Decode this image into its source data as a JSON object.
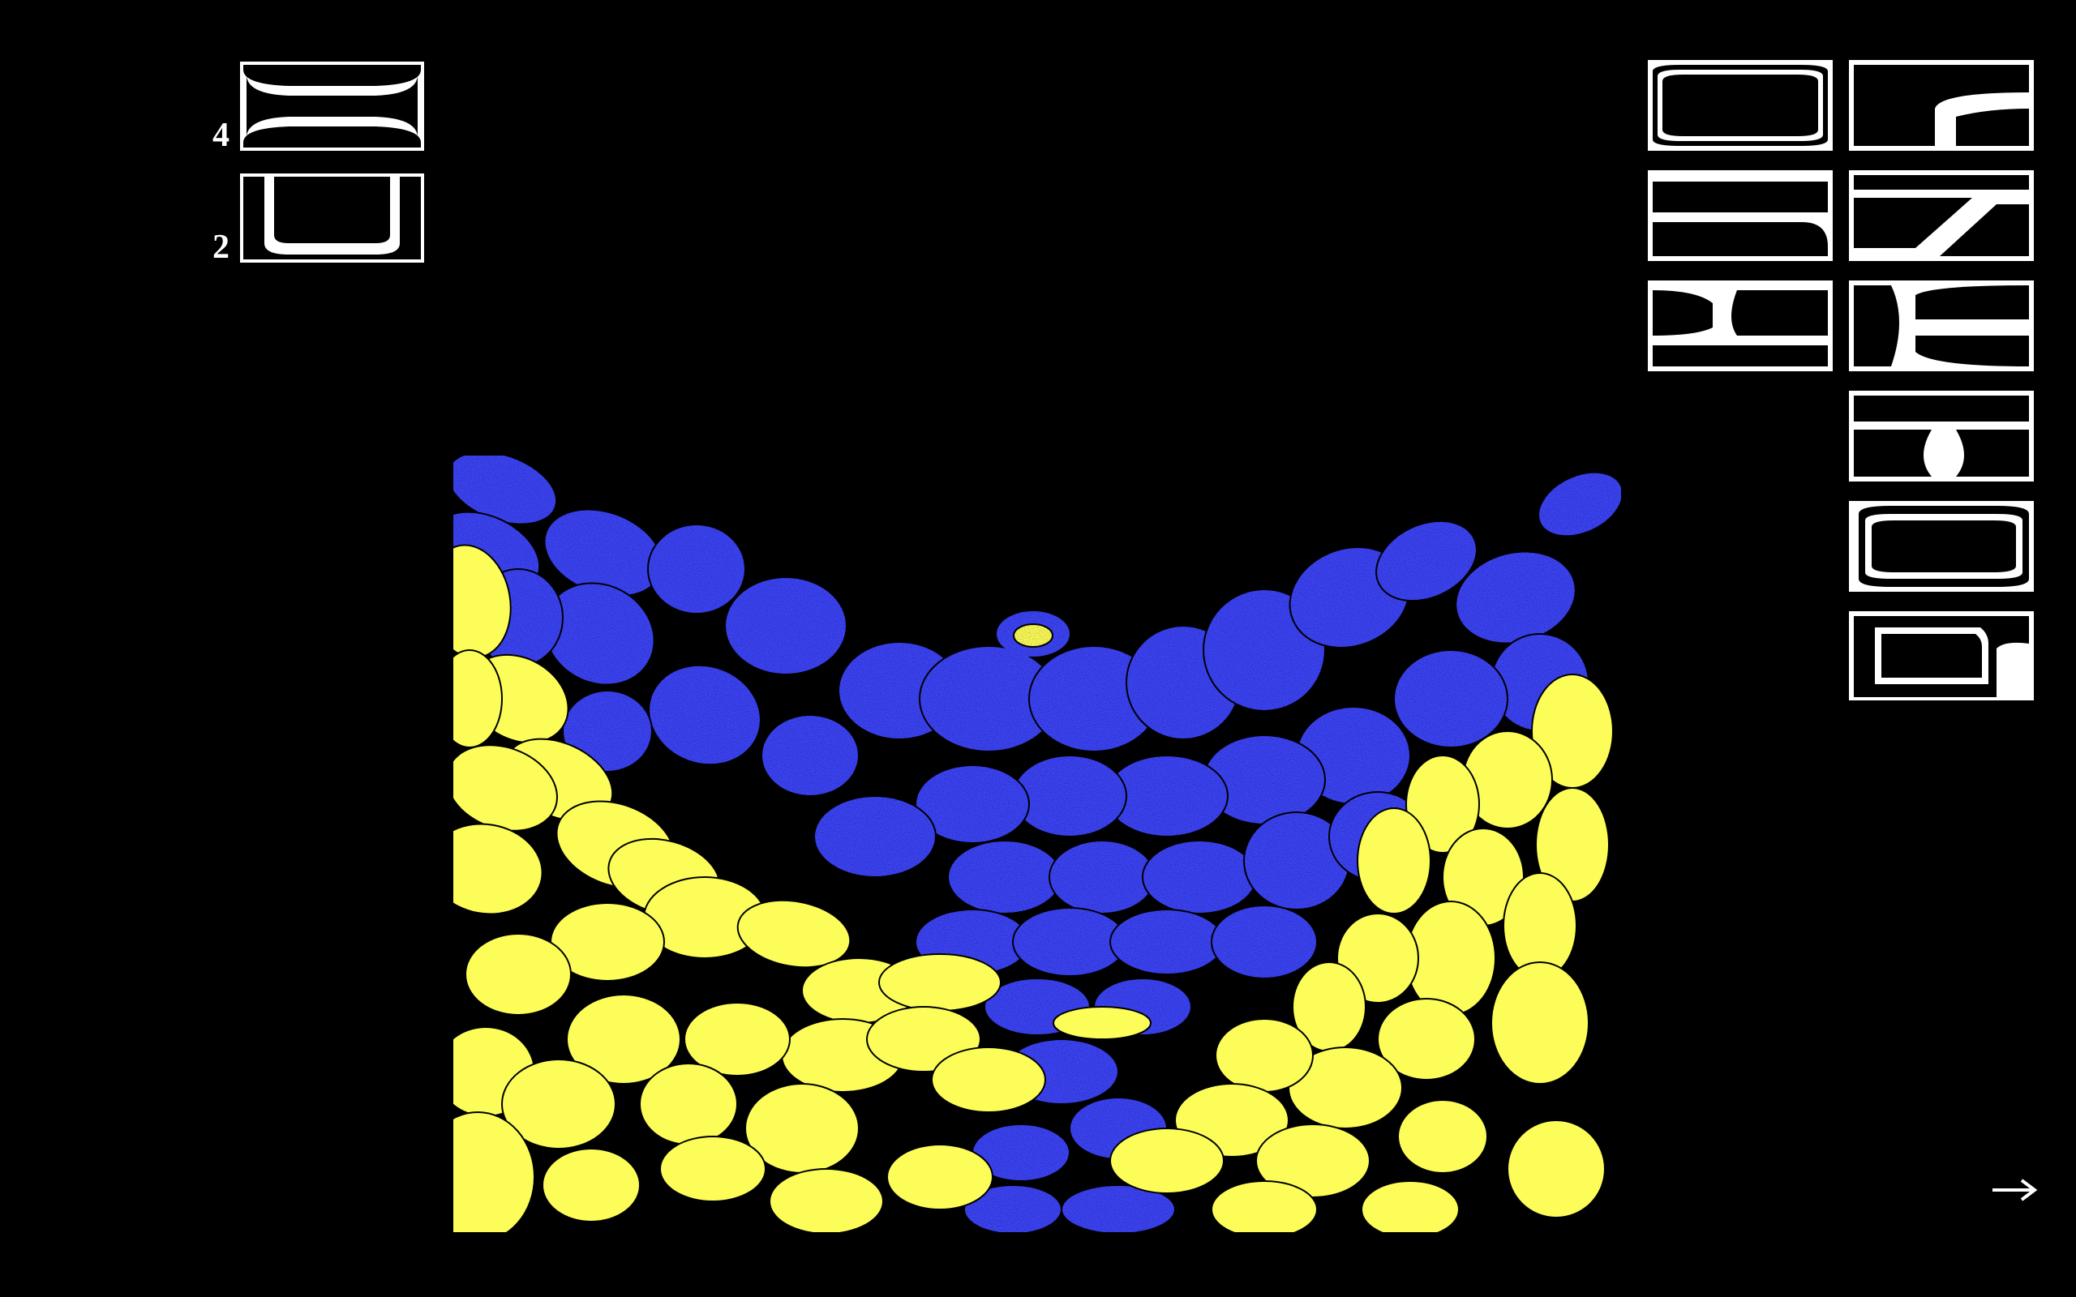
{
  "counter": {
    "current": "4",
    "total": "2"
  },
  "title": {
    "label": ""
  },
  "navigation": {
    "next_icon": "arrow-right-icon",
    "next_symbol": "→"
  },
  "colors": {
    "background": "#000000",
    "foreground": "#ffffff",
    "blue": "#3d45f5",
    "yellow": "#fdfd5a"
  }
}
